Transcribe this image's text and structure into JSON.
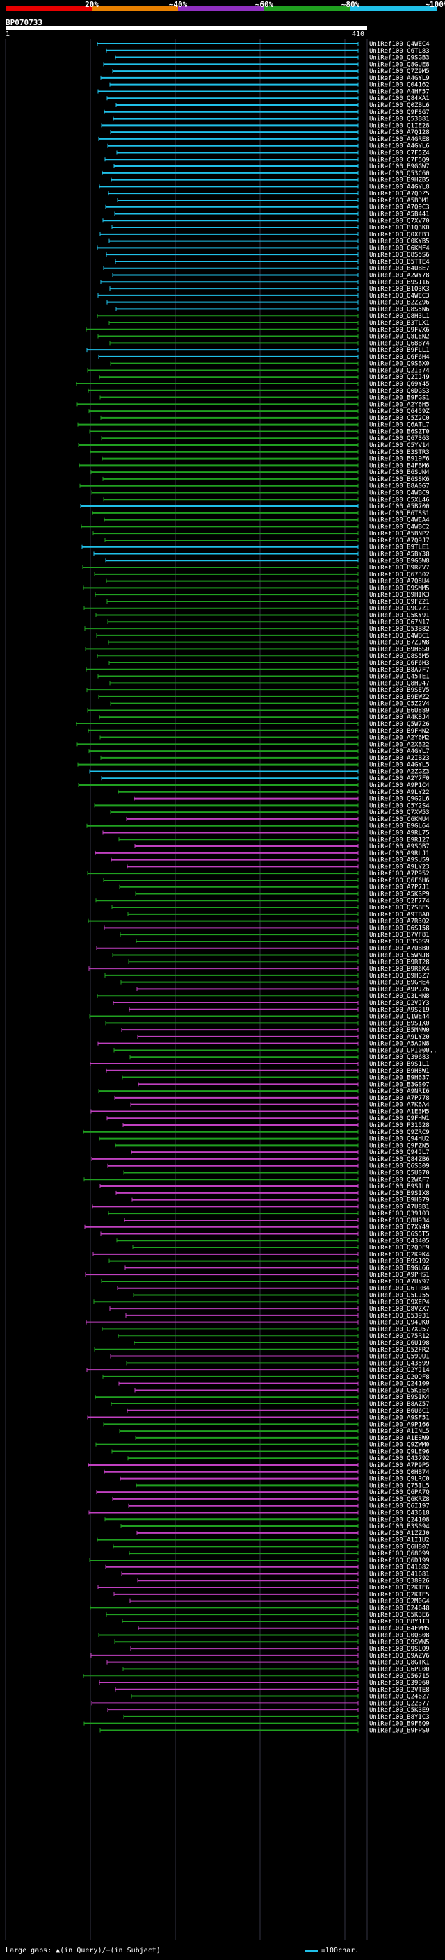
{
  "scale": {
    "labels": [
      "20%",
      "~40%",
      "~60%",
      "~80%",
      "~100%"
    ],
    "colors": [
      "#e80000",
      "#e88000",
      "#9030c0",
      "#20a020",
      "#20c0e8"
    ]
  },
  "query": {
    "id": "BP070733",
    "start": "1",
    "end": "410"
  },
  "legend": {
    "gaps": "Large gaps: ▲(in Query)/−(in Subject)",
    "char": "=100char."
  },
  "hits": [
    {
      "label": "UniRef100_Q4WEC4",
      "color": "#20c0e8"
    },
    {
      "label": "UniRef100_C6TL83",
      "color": "#20c0e8"
    },
    {
      "label": "UniRef100_Q9SGB3",
      "color": "#20c0e8"
    },
    {
      "label": "UniRef100_Q8GUE8",
      "color": "#20c0e8"
    },
    {
      "label": "UniRef100_Q7Z9M5",
      "color": "#20c0e8"
    },
    {
      "label": "UniRef100_A4GYL9",
      "color": "#20c0e8"
    },
    {
      "label": "UniRef100_Q04162",
      "color": "#20c0e8"
    },
    {
      "label": "UniRef100_A4HF57",
      "color": "#20c0e8"
    },
    {
      "label": "UniRef100_Q84XA1",
      "color": "#20c0e8"
    },
    {
      "label": "UniRef100_Q0ZBL6",
      "color": "#20c0e8"
    },
    {
      "label": "UniRef100_Q9FSG7",
      "color": "#20c0e8"
    },
    {
      "label": "UniRef100_Q53B81",
      "color": "#20c0e8"
    },
    {
      "label": "UniRef100_Q1IE28",
      "color": "#20c0e8"
    },
    {
      "label": "UniRef100_A7Q128",
      "color": "#20c0e8"
    },
    {
      "label": "UniRef100_A4GRE8",
      "color": "#20c0e8"
    },
    {
      "label": "UniRef100_A4GYL6",
      "color": "#20c0e8"
    },
    {
      "label": "UniRef100_C7F5Z4",
      "color": "#20c0e8"
    },
    {
      "label": "UniRef100_C7F5Q9",
      "color": "#20c0e8"
    },
    {
      "label": "UniRef100_B9GGW7",
      "color": "#20c0e8"
    },
    {
      "label": "UniRef100_Q53C60",
      "color": "#20c0e8"
    },
    {
      "label": "UniRef100_B9HZB5",
      "color": "#20c0e8"
    },
    {
      "label": "UniRef100_A4GYL8",
      "color": "#20c0e8"
    },
    {
      "label": "UniRef100_A7QDZ5",
      "color": "#20c0e8"
    },
    {
      "label": "UniRef100_A5BDM1",
      "color": "#20c0e8"
    },
    {
      "label": "UniRef100_A7Q9C3",
      "color": "#20c0e8"
    },
    {
      "label": "UniRef100_A5B441",
      "color": "#20c0e8"
    },
    {
      "label": "UniRef100_Q7XV70",
      "color": "#20c0e8"
    },
    {
      "label": "UniRef100_B1Q3K0",
      "color": "#20c0e8"
    },
    {
      "label": "UniRef100_Q0XFB3",
      "color": "#20c0e8"
    },
    {
      "label": "UniRef100_C0KYB5",
      "color": "#20c0e8"
    },
    {
      "label": "UniRef100_C6KMF4",
      "color": "#20c0e8"
    },
    {
      "label": "UniRef100_Q8S5S6",
      "color": "#20c0e8"
    },
    {
      "label": "UniRef100_B5TTE4",
      "color": "#20c0e8"
    },
    {
      "label": "UniRef100_B4UBE7",
      "color": "#20c0e8"
    },
    {
      "label": "UniRef100_A2WY78",
      "color": "#20c0e8"
    },
    {
      "label": "UniRef100_B9S116",
      "color": "#20c0e8"
    },
    {
      "label": "UniRef100_B1Q3K3",
      "color": "#20c0e8"
    },
    {
      "label": "UniRef100_Q4WEC3",
      "color": "#20c0e8"
    },
    {
      "label": "UniRef100_B2ZZ96",
      "color": "#20c0e8"
    },
    {
      "label": "UniRef100_Q8S5N6",
      "color": "#20c0e8"
    },
    {
      "label": "UniRef100_Q8H3L1",
      "color": "#20a020"
    },
    {
      "label": "UniRef100_B3TLX1",
      "color": "#20a020"
    },
    {
      "label": "UniRef100_Q9FVX6",
      "color": "#20a020"
    },
    {
      "label": "UniRef100_Q8LEN2",
      "color": "#20a020"
    },
    {
      "label": "UniRef100_Q68BY4",
      "color": "#20a020"
    },
    {
      "label": "UniRef100_B9FLL1",
      "color": "#20c0e8"
    },
    {
      "label": "UniRef100_Q6F6H4",
      "color": "#20c0e8"
    },
    {
      "label": "UniRef100_Q9SBX0",
      "color": "#20a020"
    },
    {
      "label": "UniRef100_Q2I374",
      "color": "#20a020"
    },
    {
      "label": "UniRef100_Q2IJ49",
      "color": "#20a020"
    },
    {
      "label": "UniRef100_Q69Y45",
      "color": "#20a020"
    },
    {
      "label": "UniRef100_Q0DGS3",
      "color": "#20a020"
    },
    {
      "label": "UniRef100_B9FGS1",
      "color": "#20a020"
    },
    {
      "label": "UniRef100_A2Y6H5",
      "color": "#20a020"
    },
    {
      "label": "UniRef100_Q6459Z",
      "color": "#20a020"
    },
    {
      "label": "UniRef100_C5Z2C0",
      "color": "#20a020"
    },
    {
      "label": "UniRef100_Q6ATL7",
      "color": "#20a020"
    },
    {
      "label": "UniRef100_B6SZT0",
      "color": "#20a020"
    },
    {
      "label": "UniRef100_Q67363",
      "color": "#20a020"
    },
    {
      "label": "UniRef100_C5YV14",
      "color": "#20a020"
    },
    {
      "label": "UniRef100_B3STR3",
      "color": "#20a020"
    },
    {
      "label": "UniRef100_B919F6",
      "color": "#20a020"
    },
    {
      "label": "UniRef100_B4FBM6",
      "color": "#20a020"
    },
    {
      "label": "UniRef100_B6SUN4",
      "color": "#20a020"
    },
    {
      "label": "UniRef100_B6SSK6",
      "color": "#20a020"
    },
    {
      "label": "UniRef100_B8A0G7",
      "color": "#20a020"
    },
    {
      "label": "UniRef100_Q4WBC9",
      "color": "#20a020"
    },
    {
      "label": "UniRef100_C5XL46",
      "color": "#20a020"
    },
    {
      "label": "UniRef100_A5B700",
      "color": "#20c0e8"
    },
    {
      "label": "UniRef100_B6TSS1",
      "color": "#20a020"
    },
    {
      "label": "UniRef100_Q4WEA4",
      "color": "#20a020"
    },
    {
      "label": "UniRef100_Q4WBC2",
      "color": "#20a020"
    },
    {
      "label": "UniRef100_A5BNP2",
      "color": "#20a020"
    },
    {
      "label": "UniRef100_A7Q9J7",
      "color": "#20a020"
    },
    {
      "label": "UniRef100_B9TLE1",
      "color": "#20c0e8"
    },
    {
      "label": "UniRef100_A5BY38",
      "color": "#20c0e8"
    },
    {
      "label": "UniRef100_B9GGW8",
      "color": "#20c0e8"
    },
    {
      "label": "UniRef100_B9RZV7",
      "color": "#20a020"
    },
    {
      "label": "UniRef100_Q67302",
      "color": "#20a020"
    },
    {
      "label": "UniRef100_A7Q8U4",
      "color": "#20a020"
    },
    {
      "label": "UniRef100_Q9SMM5",
      "color": "#20a020"
    },
    {
      "label": "UniRef100_B9HIK3",
      "color": "#20a020"
    },
    {
      "label": "UniRef100_Q9FZ21",
      "color": "#20a020"
    },
    {
      "label": "UniRef100_Q9C7Z1",
      "color": "#20a020"
    },
    {
      "label": "UniRef100_Q5KY91",
      "color": "#20a020"
    },
    {
      "label": "UniRef100_Q67N17",
      "color": "#20a020"
    },
    {
      "label": "UniRef100_Q53B82",
      "color": "#20a020"
    },
    {
      "label": "UniRef100_Q4WBC1",
      "color": "#20a020"
    },
    {
      "label": "UniRef100_B7ZJW8",
      "color": "#20a020"
    },
    {
      "label": "UniRef100_B9H6S0",
      "color": "#20a020"
    },
    {
      "label": "UniRef100_Q8S5M5",
      "color": "#20a020"
    },
    {
      "label": "UniRef100_Q6F6H3",
      "color": "#20a020"
    },
    {
      "label": "UniRef100_B8A7F7",
      "color": "#20a020"
    },
    {
      "label": "UniRef100_Q45TE1",
      "color": "#20a020"
    },
    {
      "label": "UniRef100_Q8H947",
      "color": "#20a020"
    },
    {
      "label": "UniRef100_B9SEV5",
      "color": "#20a020"
    },
    {
      "label": "UniRef100_B9EWZ2",
      "color": "#20a020"
    },
    {
      "label": "UniRef100_C5Z2V4",
      "color": "#20a020"
    },
    {
      "label": "UniRef100_B6U889",
      "color": "#20a020"
    },
    {
      "label": "UniRef100_A4K8J4",
      "color": "#20a020"
    },
    {
      "label": "UniRef100_Q5W726",
      "color": "#20a020"
    },
    {
      "label": "UniRef100_B9FHN2",
      "color": "#20a020"
    },
    {
      "label": "UniRef100_A2Y6M2",
      "color": "#20a020"
    },
    {
      "label": "UniRef100_A2XB22",
      "color": "#20a020"
    },
    {
      "label": "UniRef100_A4GYL7",
      "color": "#20a020"
    },
    {
      "label": "UniRef100_A2IB23",
      "color": "#20a020"
    },
    {
      "label": "UniRef100_A4GYL5",
      "color": "#20a020"
    },
    {
      "label": "UniRef100_A2ZGZ3",
      "color": "#20c0e8"
    },
    {
      "label": "UniRef100_A2Y7F0",
      "color": "#20c0e8"
    },
    {
      "label": "UniRef100_A9P1C4",
      "color": "#20a020"
    },
    {
      "label": "UniRef100_A9LY22",
      "color": "#20a020"
    },
    {
      "label": "UniRef100_Q9G2L6",
      "color": "#9030c0"
    },
    {
      "label": "UniRef100_C5Y2S4",
      "color": "#20a020"
    },
    {
      "label": "UniRef100_Q7XW53",
      "color": "#20a020"
    },
    {
      "label": "UniRef100_C6KMU4",
      "color": "#9030c0"
    },
    {
      "label": "UniRef100_B9GL64",
      "color": "#20a020"
    },
    {
      "label": "UniRef100_A9RL75",
      "color": "#9030c0"
    },
    {
      "label": "UniRef100_B9R127",
      "color": "#20a020"
    },
    {
      "label": "UniRef100_A9SQB7",
      "color": "#9030c0"
    },
    {
      "label": "UniRef100_A9RLJ1",
      "color": "#9030c0"
    },
    {
      "label": "UniRef100_A9SU59",
      "color": "#9030c0"
    },
    {
      "label": "UniRef100_A9LY23",
      "color": "#9030c0"
    },
    {
      "label": "UniRef100_A7P952",
      "color": "#20a020"
    },
    {
      "label": "UniRef100_Q6F6H6",
      "color": "#20a020"
    },
    {
      "label": "UniRef100_A7P7J1",
      "color": "#20a020"
    },
    {
      "label": "UniRef100_A5KSP9",
      "color": "#20a020"
    },
    {
      "label": "UniRef100_Q2F774",
      "color": "#20a020"
    },
    {
      "label": "UniRef100_Q7SBE5",
      "color": "#20a020"
    },
    {
      "label": "UniRef100_A9TBA0",
      "color": "#20a020"
    },
    {
      "label": "UniRef100_A7R3Q2",
      "color": "#20a020"
    },
    {
      "label": "UniRef100_Q6S158",
      "color": "#9030c0"
    },
    {
      "label": "UniRef100_B7VF81",
      "color": "#20a020"
    },
    {
      "label": "UniRef100_B3S0S9",
      "color": "#20a020"
    },
    {
      "label": "UniRef100_A7UBB0",
      "color": "#9030c0"
    },
    {
      "label": "UniRef100_C5WNJ8",
      "color": "#20a020"
    },
    {
      "label": "UniRef100_B9RT28",
      "color": "#20a020"
    },
    {
      "label": "UniRef100_B9R6K4",
      "color": "#9030c0"
    },
    {
      "label": "UniRef100_B9HSZ7",
      "color": "#20a020"
    },
    {
      "label": "UniRef100_B9GHE4",
      "color": "#20a020"
    },
    {
      "label": "UniRef100_A9PJ26",
      "color": "#9030c0"
    },
    {
      "label": "UniRef100_Q3LHN8",
      "color": "#20a020"
    },
    {
      "label": "UniRef100_Q2VJY3",
      "color": "#9030c0"
    },
    {
      "label": "UniRef100_A9S219",
      "color": "#9030c0"
    },
    {
      "label": "UniRef100_Q1WE44",
      "color": "#20a020"
    },
    {
      "label": "UniRef100_B9S1X0",
      "color": "#20a020"
    },
    {
      "label": "UniRef100_B5MNW0",
      "color": "#9030c0"
    },
    {
      "label": "UniRef100_A9LY20",
      "color": "#9030c0"
    },
    {
      "label": "UniRef100_A5AJN8",
      "color": "#9030c0"
    },
    {
      "label": "UniRef100_UPI000..",
      "color": "#20a020"
    },
    {
      "label": "UniRef100_Q39683",
      "color": "#20a020"
    },
    {
      "label": "UniRef100_B9S1L1",
      "color": "#9030c0"
    },
    {
      "label": "UniRef100_B9H8W1",
      "color": "#9030c0"
    },
    {
      "label": "UniRef100_B9H637",
      "color": "#20a020"
    },
    {
      "label": "UniRef100_B3GS07",
      "color": "#9030c0"
    },
    {
      "label": "UniRef100_A9NRI6",
      "color": "#20a020"
    },
    {
      "label": "UniRef100_A7P778",
      "color": "#9030c0"
    },
    {
      "label": "UniRef100_A7K6A4",
      "color": "#9030c0"
    },
    {
      "label": "UniRef100_A1E3M5",
      "color": "#9030c0"
    },
    {
      "label": "UniRef100_Q9FHW1",
      "color": "#9030c0"
    },
    {
      "label": "UniRef100_P31528",
      "color": "#9030c0"
    },
    {
      "label": "UniRef100_Q9ZRC9",
      "color": "#20a020"
    },
    {
      "label": "UniRef100_Q94HU2",
      "color": "#20a020"
    },
    {
      "label": "UniRef100_Q9FZN5",
      "color": "#20a020"
    },
    {
      "label": "UniRef100_Q94JL7",
      "color": "#9030c0"
    },
    {
      "label": "UniRef100_Q84ZB6",
      "color": "#9030c0"
    },
    {
      "label": "UniRef100_Q6S309",
      "color": "#9030c0"
    },
    {
      "label": "UniRef100_Q5U070",
      "color": "#20a020"
    },
    {
      "label": "UniRef100_Q2WAF7",
      "color": "#20a020"
    },
    {
      "label": "UniRef100_B9SIL0",
      "color": "#9030c0"
    },
    {
      "label": "UniRef100_B9SIX8",
      "color": "#9030c0"
    },
    {
      "label": "UniRef100_B9H079",
      "color": "#9030c0"
    },
    {
      "label": "UniRef100_A7U8B1",
      "color": "#9030c0"
    },
    {
      "label": "UniRef100_Q39103",
      "color": "#20a020"
    },
    {
      "label": "UniRef100_Q8H934",
      "color": "#9030c0"
    },
    {
      "label": "UniRef100_Q7XY49",
      "color": "#9030c0"
    },
    {
      "label": "UniRef100_Q6S5T5",
      "color": "#9030c0"
    },
    {
      "label": "UniRef100_Q43405",
      "color": "#20a020"
    },
    {
      "label": "UniRef100_Q2QDF9",
      "color": "#20a020"
    },
    {
      "label": "UniRef100_Q2K9K4",
      "color": "#9030c0"
    },
    {
      "label": "UniRef100_B9S192",
      "color": "#20a020"
    },
    {
      "label": "UniRef100_B9GL66",
      "color": "#9030c0"
    },
    {
      "label": "UniRef100_A9PHS1",
      "color": "#9030c0"
    },
    {
      "label": "UniRef100_A7UY97",
      "color": "#20a020"
    },
    {
      "label": "UniRef100_Q6TRB4",
      "color": "#9030c0"
    },
    {
      "label": "UniRef100_Q5LJ55",
      "color": "#20a020"
    },
    {
      "label": "UniRef100_Q9XEP4",
      "color": "#20a020"
    },
    {
      "label": "UniRef100_Q8VZX7",
      "color": "#9030c0"
    },
    {
      "label": "UniRef100_Q53931",
      "color": "#9030c0"
    },
    {
      "label": "UniRef100_Q94UK0",
      "color": "#9030c0"
    },
    {
      "label": "UniRef100_Q7XU57",
      "color": "#20a020"
    },
    {
      "label": "UniRef100_Q75R12",
      "color": "#20a020"
    },
    {
      "label": "UniRef100_Q6U198",
      "color": "#20a020"
    },
    {
      "label": "UniRef100_Q52FR2",
      "color": "#20a020"
    },
    {
      "label": "UniRef100_Q59QU1",
      "color": "#9030c0"
    },
    {
      "label": "UniRef100_Q43599",
      "color": "#20a020"
    },
    {
      "label": "UniRef100_Q2YJ14",
      "color": "#9030c0"
    },
    {
      "label": "UniRef100_Q2QDF8",
      "color": "#20a020"
    },
    {
      "label": "UniRef100_Q24109",
      "color": "#9030c0"
    },
    {
      "label": "UniRef100_C5K3E4",
      "color": "#9030c0"
    },
    {
      "label": "UniRef100_B9SIK4",
      "color": "#20a020"
    },
    {
      "label": "UniRef100_B8AZ57",
      "color": "#20a020"
    },
    {
      "label": "UniRef100_B6U6C1",
      "color": "#9030c0"
    },
    {
      "label": "UniRef100_A9SF51",
      "color": "#9030c0"
    },
    {
      "label": "UniRef100_A9P166",
      "color": "#20a020"
    },
    {
      "label": "UniRef100_A1INL5",
      "color": "#20a020"
    },
    {
      "label": "UniRef100_A1ESW9",
      "color": "#20a020"
    },
    {
      "label": "UniRef100_Q9ZWM0",
      "color": "#20a020"
    },
    {
      "label": "UniRef100_Q9LE96",
      "color": "#20a020"
    },
    {
      "label": "UniRef100_Q43792",
      "color": "#20a020"
    },
    {
      "label": "UniRef100_A7P9P5",
      "color": "#9030c0"
    },
    {
      "label": "UniRef100_Q0HB74",
      "color": "#9030c0"
    },
    {
      "label": "UniRef100_Q9LRC0",
      "color": "#9030c0"
    },
    {
      "label": "UniRef100_Q75IL5",
      "color": "#20a020"
    },
    {
      "label": "UniRef100_Q6PA7Q",
      "color": "#9030c0"
    },
    {
      "label": "UniRef100_Q6KRZ8",
      "color": "#9030c0"
    },
    {
      "label": "UniRef100_Q6I197",
      "color": "#9030c0"
    },
    {
      "label": "UniRef100_Q43618",
      "color": "#9030c0"
    },
    {
      "label": "UniRef100_Q24108",
      "color": "#20a020"
    },
    {
      "label": "UniRef100_B3S094",
      "color": "#20a020"
    },
    {
      "label": "UniRef100_A1ZZJ0",
      "color": "#9030c0"
    },
    {
      "label": "UniRef100_A1I1U2",
      "color": "#20a020"
    },
    {
      "label": "UniRef100_Q6H807",
      "color": "#20a020"
    },
    {
      "label": "UniRef100_Q68099",
      "color": "#20a020"
    },
    {
      "label": "UniRef100_Q6D199",
      "color": "#20a020"
    },
    {
      "label": "UniRef100_Q41682",
      "color": "#9030c0"
    },
    {
      "label": "UniRef100_Q41681",
      "color": "#9030c0"
    },
    {
      "label": "UniRef100_Q38926",
      "color": "#9030c0"
    },
    {
      "label": "UniRef100_Q2KTE6",
      "color": "#9030c0"
    },
    {
      "label": "UniRef100_Q2KTE5",
      "color": "#9030c0"
    },
    {
      "label": "UniRef100_Q2M0G4",
      "color": "#9030c0"
    },
    {
      "label": "UniRef100_Q24648",
      "color": "#20a020"
    },
    {
      "label": "UniRef100_C5K3E6",
      "color": "#20a020"
    },
    {
      "label": "UniRef100_B8Y1I3",
      "color": "#20a020"
    },
    {
      "label": "UniRef100_B4FWM5",
      "color": "#9030c0"
    },
    {
      "label": "UniRef100_Q0QS08",
      "color": "#20a020"
    },
    {
      "label": "UniRef100_Q9SWN5",
      "color": "#20a020"
    },
    {
      "label": "UniRef100_Q9SLQ9",
      "color": "#9030c0"
    },
    {
      "label": "UniRef100_Q9AZV6",
      "color": "#9030c0"
    },
    {
      "label": "UniRef100_Q8GTK1",
      "color": "#9030c0"
    },
    {
      "label": "UniRef100_Q6PL00",
      "color": "#20a020"
    },
    {
      "label": "UniRef100_Q56715",
      "color": "#20a020"
    },
    {
      "label": "UniRef100_Q39960",
      "color": "#9030c0"
    },
    {
      "label": "UniRef100_Q2VTE8",
      "color": "#9030c0"
    },
    {
      "label": "UniRef100_Q24627",
      "color": "#20a020"
    },
    {
      "label": "UniRef100_Q22377",
      "color": "#9030c0"
    },
    {
      "label": "UniRef100_C5K3E9",
      "color": "#9030c0"
    },
    {
      "label": "UniRef100_B8YIC3",
      "color": "#20a020"
    },
    {
      "label": "UniRef100_B9F8Q9",
      "color": "#20a020"
    },
    {
      "label": "UniRef100_B9FPS0",
      "color": "#20a020"
    }
  ]
}
